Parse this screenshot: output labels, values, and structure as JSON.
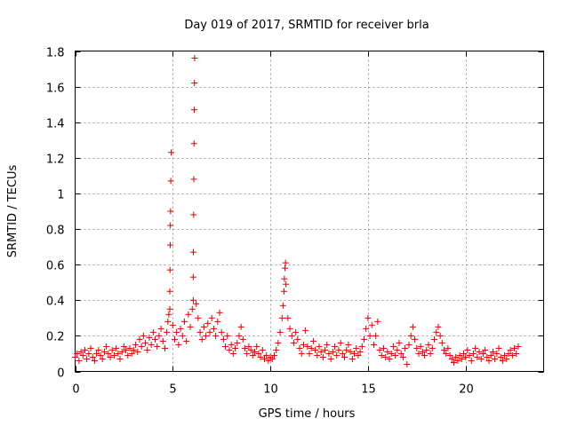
{
  "chart_data": {
    "type": "scatter",
    "title": "Day 019 of 2017, SRMTID for receiver brla",
    "xlabel": "GPS time / hours",
    "ylabel": "SRMTID / TECUs",
    "xlim": [
      0,
      24
    ],
    "ylim": [
      0,
      1.8
    ],
    "xticks": [
      0,
      5,
      10,
      15,
      20
    ],
    "yticks": [
      0,
      0.2,
      0.4,
      0.6,
      0.8,
      1,
      1.2,
      1.4,
      1.6,
      1.8
    ],
    "xtick_labels": [
      "0",
      "5",
      "10",
      "15",
      "20"
    ],
    "ytick_labels": [
      "0",
      "0.2",
      "0.4",
      "0.6",
      "0.8",
      "1",
      "1.2",
      "1.4",
      "1.6",
      "1.8"
    ],
    "grid": true,
    "marker": "+",
    "color": "#e00000",
    "series": [
      {
        "name": "SRMTID",
        "points": [
          [
            0.0,
            0.08
          ],
          [
            0.1,
            0.1
          ],
          [
            0.2,
            0.06
          ],
          [
            0.3,
            0.11
          ],
          [
            0.4,
            0.09
          ],
          [
            0.5,
            0.12
          ],
          [
            0.6,
            0.07
          ],
          [
            0.7,
            0.1
          ],
          [
            0.8,
            0.13
          ],
          [
            0.9,
            0.08
          ],
          [
            1.0,
            0.06
          ],
          [
            1.1,
            0.1
          ],
          [
            1.2,
            0.12
          ],
          [
            1.3,
            0.09
          ],
          [
            1.4,
            0.07
          ],
          [
            1.5,
            0.11
          ],
          [
            1.6,
            0.14
          ],
          [
            1.7,
            0.1
          ],
          [
            1.8,
            0.08
          ],
          [
            1.9,
            0.12
          ],
          [
            2.0,
            0.09
          ],
          [
            2.1,
            0.13
          ],
          [
            2.2,
            0.1
          ],
          [
            2.3,
            0.07
          ],
          [
            2.4,
            0.11
          ],
          [
            2.5,
            0.14
          ],
          [
            2.6,
            0.12
          ],
          [
            2.7,
            0.09
          ],
          [
            2.8,
            0.13
          ],
          [
            2.9,
            0.1
          ],
          [
            3.0,
            0.12
          ],
          [
            3.1,
            0.15
          ],
          [
            3.2,
            0.11
          ],
          [
            3.3,
            0.18
          ],
          [
            3.4,
            0.14
          ],
          [
            3.5,
            0.2
          ],
          [
            3.6,
            0.16
          ],
          [
            3.7,
            0.12
          ],
          [
            3.8,
            0.19
          ],
          [
            3.9,
            0.15
          ],
          [
            4.0,
            0.22
          ],
          [
            4.1,
            0.18
          ],
          [
            4.2,
            0.14
          ],
          [
            4.3,
            0.2
          ],
          [
            4.4,
            0.24
          ],
          [
            4.5,
            0.17
          ],
          [
            4.6,
            0.13
          ],
          [
            4.7,
            0.22
          ],
          [
            4.75,
            0.28
          ],
          [
            4.8,
            0.32
          ],
          [
            4.85,
            0.35
          ],
          [
            4.85,
            0.45
          ],
          [
            4.86,
            0.57
          ],
          [
            4.87,
            0.71
          ],
          [
            4.88,
            0.82
          ],
          [
            4.89,
            0.9
          ],
          [
            4.9,
            1.07
          ],
          [
            4.92,
            1.23
          ],
          [
            5.0,
            0.26
          ],
          [
            5.1,
            0.18
          ],
          [
            5.2,
            0.22
          ],
          [
            5.3,
            0.15
          ],
          [
            5.4,
            0.24
          ],
          [
            5.5,
            0.2
          ],
          [
            5.6,
            0.28
          ],
          [
            5.7,
            0.17
          ],
          [
            5.8,
            0.32
          ],
          [
            5.9,
            0.25
          ],
          [
            6.0,
            0.35
          ],
          [
            6.05,
            0.4
          ],
          [
            6.05,
            0.53
          ],
          [
            6.06,
            0.67
          ],
          [
            6.07,
            0.88
          ],
          [
            6.08,
            1.08
          ],
          [
            6.09,
            1.28
          ],
          [
            6.1,
            1.47
          ],
          [
            6.11,
            1.62
          ],
          [
            6.12,
            1.76
          ],
          [
            6.2,
            0.38
          ],
          [
            6.3,
            0.3
          ],
          [
            6.4,
            0.22
          ],
          [
            6.5,
            0.18
          ],
          [
            6.6,
            0.25
          ],
          [
            6.7,
            0.2
          ],
          [
            6.8,
            0.27
          ],
          [
            6.9,
            0.22
          ],
          [
            7.0,
            0.3
          ],
          [
            7.1,
            0.24
          ],
          [
            7.2,
            0.2
          ],
          [
            7.3,
            0.28
          ],
          [
            7.4,
            0.33
          ],
          [
            7.5,
            0.22
          ],
          [
            7.6,
            0.18
          ],
          [
            7.7,
            0.14
          ],
          [
            7.8,
            0.2
          ],
          [
            7.9,
            0.12
          ],
          [
            8.0,
            0.15
          ],
          [
            8.1,
            0.1
          ],
          [
            8.2,
            0.13
          ],
          [
            8.3,
            0.16
          ],
          [
            8.4,
            0.2
          ],
          [
            8.5,
            0.25
          ],
          [
            8.6,
            0.18
          ],
          [
            8.7,
            0.13
          ],
          [
            8.8,
            0.1
          ],
          [
            8.9,
            0.14
          ],
          [
            9.0,
            0.12
          ],
          [
            9.1,
            0.09
          ],
          [
            9.2,
            0.11
          ],
          [
            9.3,
            0.14
          ],
          [
            9.4,
            0.1
          ],
          [
            9.5,
            0.08
          ],
          [
            9.6,
            0.12
          ],
          [
            9.7,
            0.07
          ],
          [
            9.8,
            0.09
          ],
          [
            9.9,
            0.06
          ],
          [
            10.0,
            0.08
          ],
          [
            10.1,
            0.07
          ],
          [
            10.2,
            0.09
          ],
          [
            10.3,
            0.12
          ],
          [
            10.4,
            0.16
          ],
          [
            10.5,
            0.22
          ],
          [
            10.6,
            0.3
          ],
          [
            10.65,
            0.37
          ],
          [
            10.7,
            0.45
          ],
          [
            10.72,
            0.52
          ],
          [
            10.75,
            0.58
          ],
          [
            10.78,
            0.61
          ],
          [
            10.8,
            0.49
          ],
          [
            10.9,
            0.3
          ],
          [
            11.0,
            0.24
          ],
          [
            11.1,
            0.2
          ],
          [
            11.2,
            0.16
          ],
          [
            11.3,
            0.22
          ],
          [
            11.4,
            0.18
          ],
          [
            11.5,
            0.13
          ],
          [
            11.6,
            0.1
          ],
          [
            11.7,
            0.15
          ],
          [
            11.8,
            0.23
          ],
          [
            11.9,
            0.14
          ],
          [
            12.0,
            0.1
          ],
          [
            12.1,
            0.13
          ],
          [
            12.2,
            0.17
          ],
          [
            12.3,
            0.12
          ],
          [
            12.4,
            0.09
          ],
          [
            12.5,
            0.14
          ],
          [
            12.6,
            0.11
          ],
          [
            12.7,
            0.08
          ],
          [
            12.8,
            0.12
          ],
          [
            12.9,
            0.15
          ],
          [
            13.0,
            0.1
          ],
          [
            13.1,
            0.07
          ],
          [
            13.2,
            0.11
          ],
          [
            13.3,
            0.14
          ],
          [
            13.4,
            0.09
          ],
          [
            13.5,
            0.12
          ],
          [
            13.6,
            0.16
          ],
          [
            13.7,
            0.1
          ],
          [
            13.8,
            0.08
          ],
          [
            13.9,
            0.12
          ],
          [
            14.0,
            0.15
          ],
          [
            14.1,
            0.11
          ],
          [
            14.2,
            0.07
          ],
          [
            14.3,
            0.1
          ],
          [
            14.4,
            0.13
          ],
          [
            14.5,
            0.09
          ],
          [
            14.6,
            0.11
          ],
          [
            14.7,
            0.14
          ],
          [
            14.8,
            0.18
          ],
          [
            14.9,
            0.24
          ],
          [
            15.0,
            0.3
          ],
          [
            15.1,
            0.2
          ],
          [
            15.2,
            0.26
          ],
          [
            15.3,
            0.15
          ],
          [
            15.4,
            0.2
          ],
          [
            15.5,
            0.28
          ],
          [
            15.6,
            0.12
          ],
          [
            15.7,
            0.09
          ],
          [
            15.8,
            0.13
          ],
          [
            15.9,
            0.08
          ],
          [
            16.0,
            0.11
          ],
          [
            16.1,
            0.07
          ],
          [
            16.2,
            0.1
          ],
          [
            16.3,
            0.14
          ],
          [
            16.4,
            0.09
          ],
          [
            16.5,
            0.12
          ],
          [
            16.6,
            0.16
          ],
          [
            16.7,
            0.1
          ],
          [
            16.8,
            0.08
          ],
          [
            16.9,
            0.13
          ],
          [
            17.0,
            0.04
          ],
          [
            17.1,
            0.15
          ],
          [
            17.2,
            0.2
          ],
          [
            17.3,
            0.25
          ],
          [
            17.4,
            0.18
          ],
          [
            17.5,
            0.13
          ],
          [
            17.6,
            0.1
          ],
          [
            17.7,
            0.14
          ],
          [
            17.8,
            0.11
          ],
          [
            17.9,
            0.09
          ],
          [
            18.0,
            0.12
          ],
          [
            18.1,
            0.15
          ],
          [
            18.2,
            0.1
          ],
          [
            18.3,
            0.13
          ],
          [
            18.4,
            0.18
          ],
          [
            18.5,
            0.22
          ],
          [
            18.6,
            0.25
          ],
          [
            18.7,
            0.2
          ],
          [
            18.8,
            0.16
          ],
          [
            18.9,
            0.12
          ],
          [
            19.0,
            0.1
          ],
          [
            19.1,
            0.13
          ],
          [
            19.2,
            0.09
          ],
          [
            19.3,
            0.07
          ],
          [
            19.4,
            0.05
          ],
          [
            19.5,
            0.08
          ],
          [
            19.6,
            0.06
          ],
          [
            19.7,
            0.09
          ],
          [
            19.8,
            0.07
          ],
          [
            19.9,
            0.1
          ],
          [
            20.0,
            0.08
          ],
          [
            20.1,
            0.12
          ],
          [
            20.2,
            0.09
          ],
          [
            20.3,
            0.06
          ],
          [
            20.4,
            0.1
          ],
          [
            20.5,
            0.13
          ],
          [
            20.6,
            0.08
          ],
          [
            20.7,
            0.11
          ],
          [
            20.8,
            0.07
          ],
          [
            20.9,
            0.1
          ],
          [
            21.0,
            0.12
          ],
          [
            21.1,
            0.08
          ],
          [
            21.2,
            0.06
          ],
          [
            21.3,
            0.09
          ],
          [
            21.4,
            0.11
          ],
          [
            21.5,
            0.07
          ],
          [
            21.6,
            0.1
          ],
          [
            21.7,
            0.13
          ],
          [
            21.8,
            0.08
          ],
          [
            21.9,
            0.06
          ],
          [
            22.0,
            0.09
          ],
          [
            22.1,
            0.07
          ],
          [
            22.2,
            0.1
          ],
          [
            22.3,
            0.12
          ],
          [
            22.4,
            0.09
          ],
          [
            22.5,
            0.13
          ],
          [
            22.6,
            0.1
          ],
          [
            22.7,
            0.14
          ]
        ]
      }
    ]
  }
}
